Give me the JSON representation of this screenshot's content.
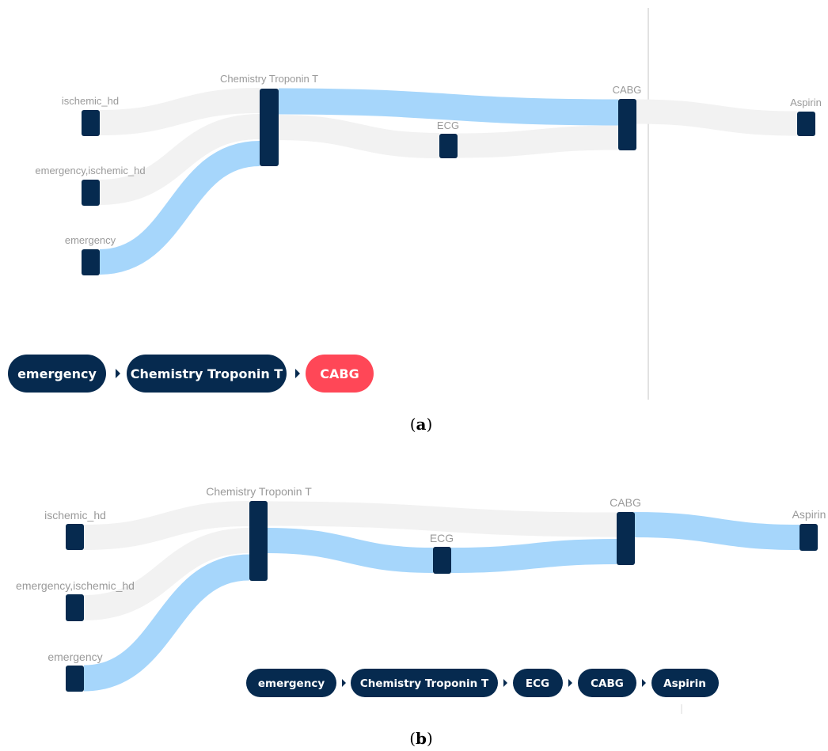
{
  "panel_a": {
    "caption_letter": "a",
    "node_labels": {
      "ischemic_hd": "ischemic_hd",
      "emergency_ischemic_hd": "emergency,ischemic_hd",
      "emergency": "emergency",
      "troponin": "Chemistry Troponin T",
      "ecg": "ECG",
      "cabg": "CABG",
      "aspirin": "Aspirin"
    },
    "path_crumbs": [
      "emergency",
      "Chemistry Troponin T",
      "CABG"
    ],
    "highlighted_crumb": "CABG"
  },
  "panel_b": {
    "caption_letter": "b",
    "node_labels": {
      "ischemic_hd": "ischemic_hd",
      "emergency_ischemic_hd": "emergency,ischemic_hd",
      "emergency": "emergency",
      "troponin": "Chemistry Troponin T",
      "ecg": "ECG",
      "cabg": "CABG",
      "aspirin": "Aspirin"
    },
    "path_crumbs": [
      "emergency",
      "Chemistry Troponin T",
      "ECG",
      "CABG",
      "Aspirin"
    ]
  },
  "colors": {
    "node": "#062a4f",
    "link_grey": "#f2f2f2",
    "link_highlight": "#a6d6fb",
    "crumb": "#062a4f",
    "crumb_active": "#ff4757"
  }
}
